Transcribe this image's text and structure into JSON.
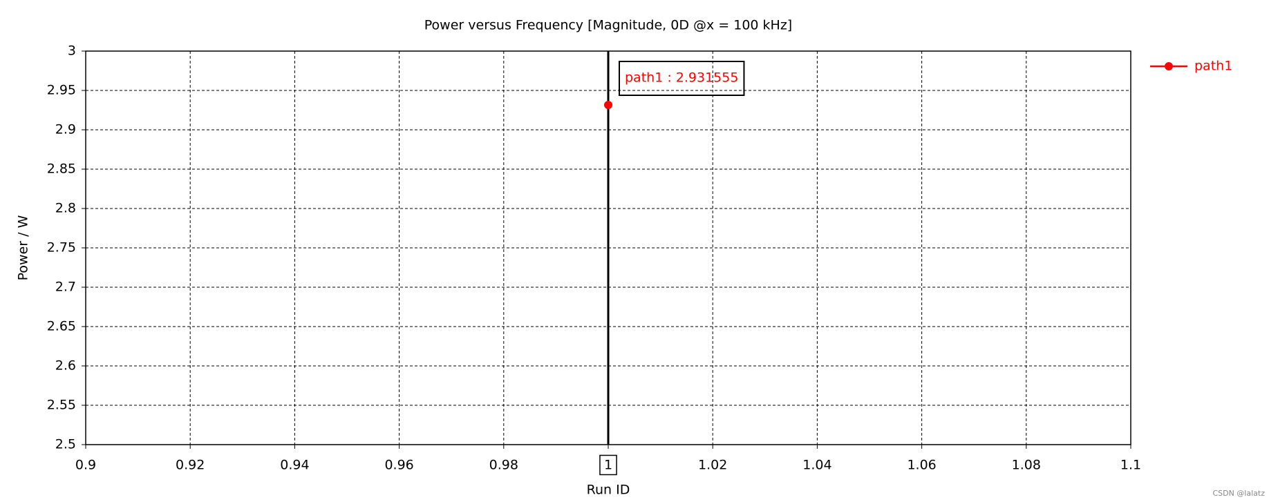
{
  "chart_data": {
    "type": "line",
    "title": "Power versus Frequency [Magnitude, 0D @x = 100 kHz]",
    "x_label": "Run ID",
    "y_label": "Power / W",
    "x": [
      1
    ],
    "series": [
      {
        "name": "path1",
        "color": "#ff0000",
        "values": [
          2.931555
        ]
      }
    ],
    "xlim": [
      0.9,
      1.1
    ],
    "xticks": [
      0.9,
      0.92,
      0.94,
      0.96,
      0.98,
      1,
      1.02,
      1.04,
      1.06,
      1.08,
      1.1
    ],
    "ylim": [
      2.5,
      3
    ],
    "yticks": [
      2.5,
      2.55,
      2.6,
      2.65,
      2.7,
      2.75,
      2.8,
      2.85,
      2.9,
      2.95,
      3
    ],
    "grid": true,
    "legend": "outside-right",
    "marker": {
      "x": 1,
      "label": "path1 : 2.931555"
    },
    "watermark": "CSDN @lalatz"
  }
}
